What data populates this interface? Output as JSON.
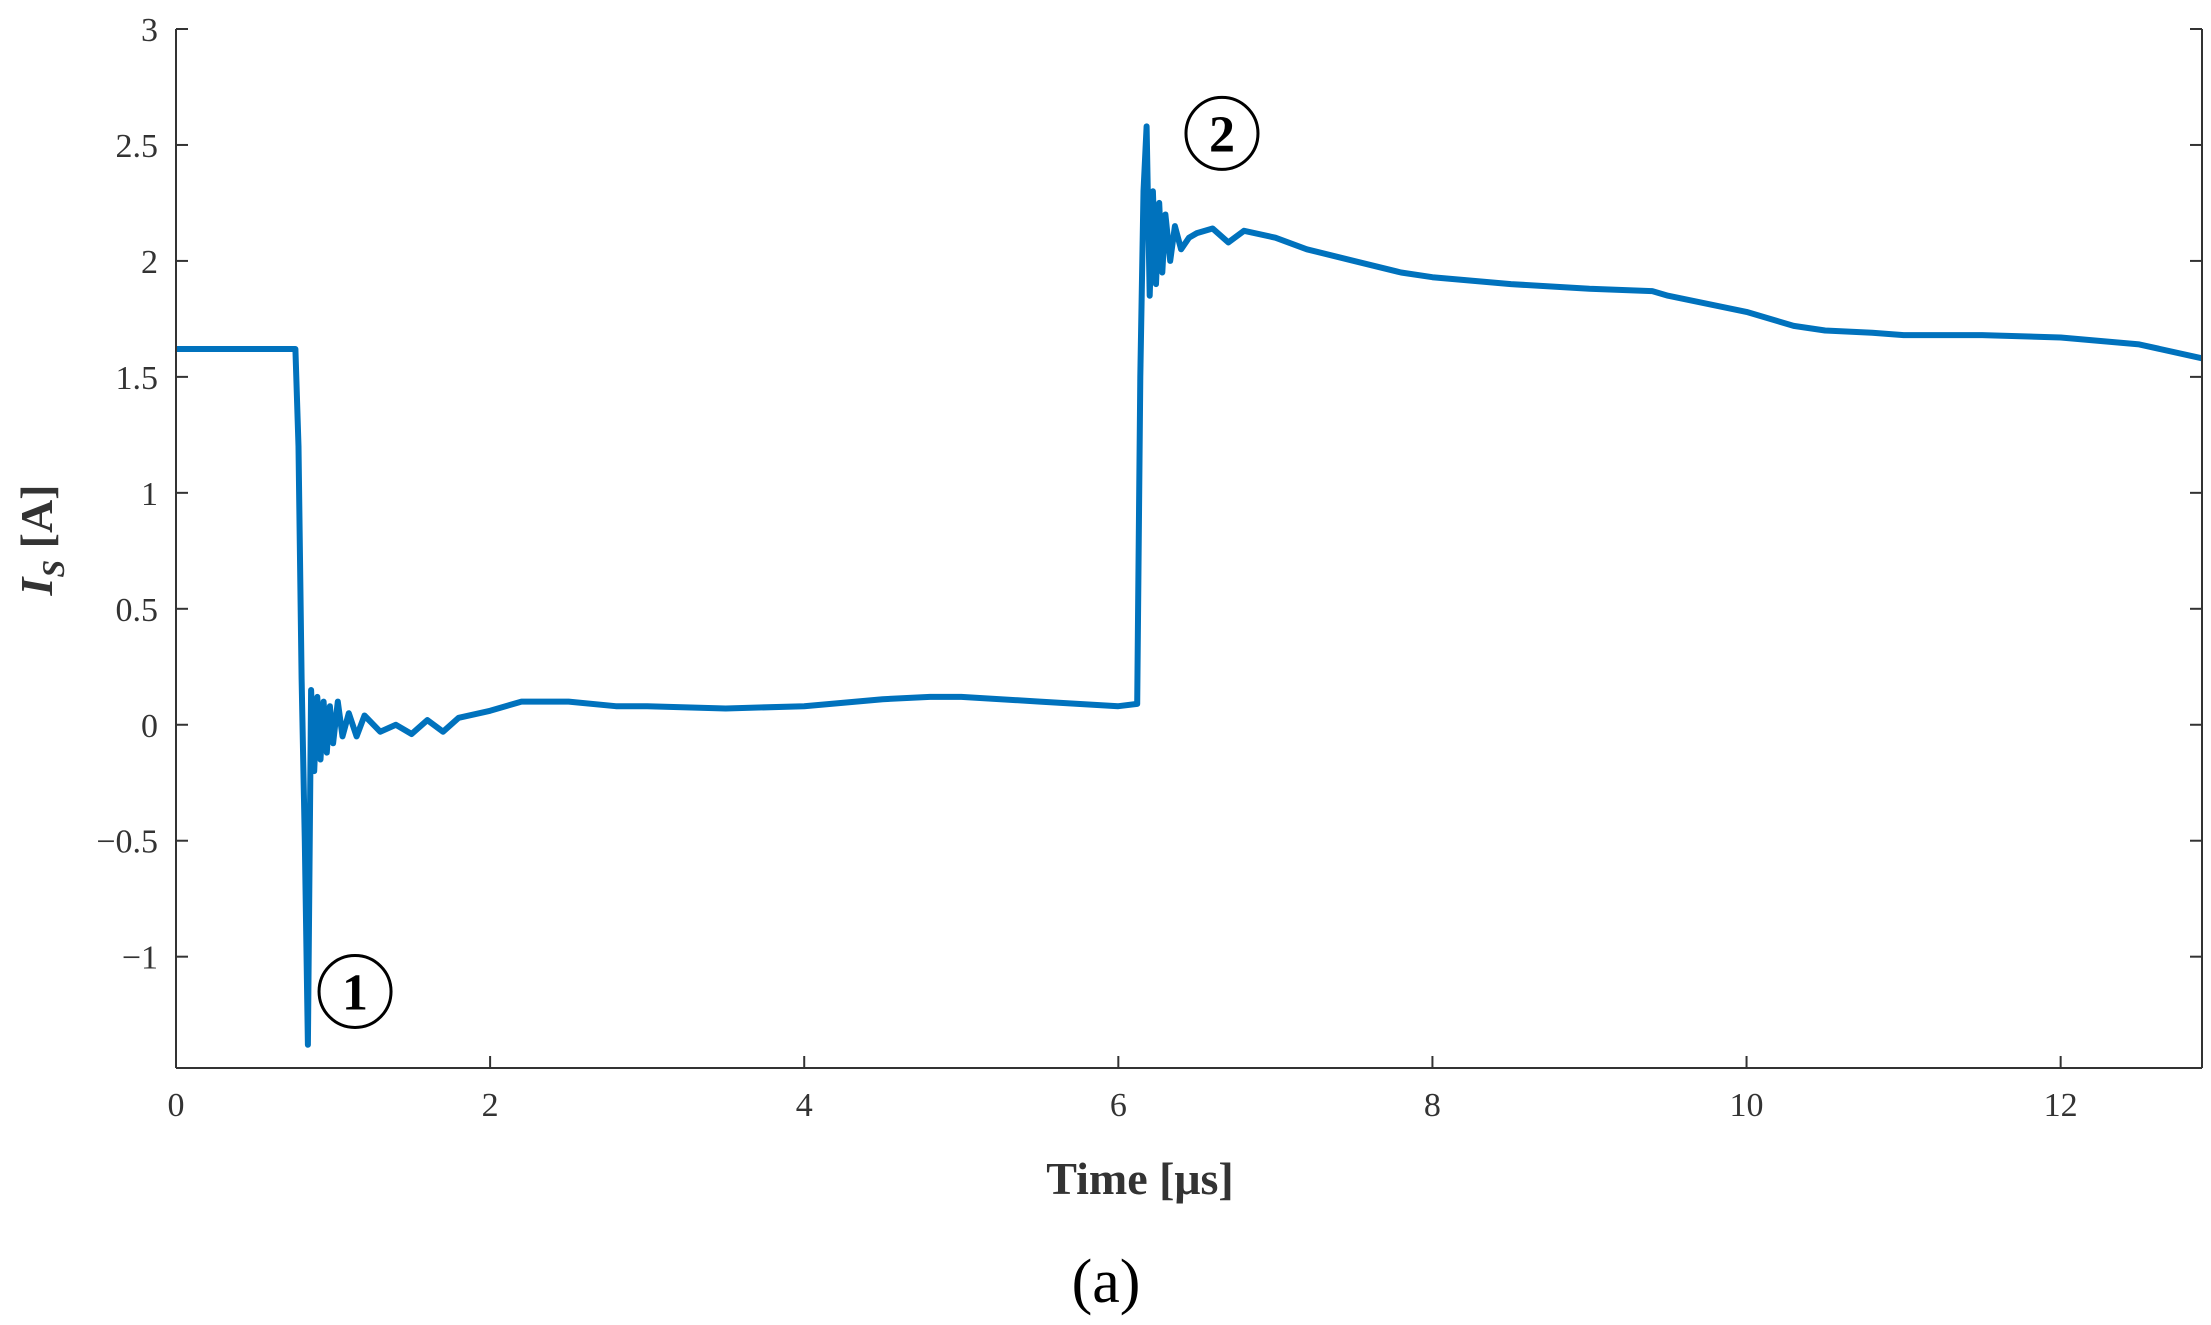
{
  "chart_data": {
    "type": "line",
    "xlabel": "Time [μs]",
    "ylabel": "I_S [A]",
    "ylabel_main": "I",
    "ylabel_sub": "S",
    "ylabel_unit": " [A]",
    "panel_label": "(a)",
    "xlim": [
      0,
      12.9
    ],
    "ylim": [
      -1.48,
      3
    ],
    "xticks": [
      0,
      2,
      4,
      6,
      8,
      10,
      12
    ],
    "yticks": [
      -1,
      -0.5,
      0,
      0.5,
      1,
      1.5,
      2,
      2.5,
      3
    ],
    "xtick_labels": [
      "0",
      "2",
      "4",
      "6",
      "8",
      "10",
      "12"
    ],
    "ytick_labels": [
      "−1",
      "−0.5",
      "0",
      "0.5",
      "1",
      "1.5",
      "2",
      "2.5",
      "3"
    ],
    "grid": false,
    "line_color": "#0072BD",
    "series": [
      {
        "x": [
          0,
          0.2,
          0.4,
          0.6,
          0.74,
          0.76,
          0.78,
          0.8,
          0.82,
          0.84,
          0.86,
          0.88,
          0.9,
          0.92,
          0.94,
          0.96,
          0.98,
          1.0,
          1.03,
          1.06,
          1.1,
          1.15,
          1.2,
          1.3,
          1.4,
          1.5,
          1.6,
          1.7,
          1.8,
          2.0,
          2.2,
          2.5,
          2.8,
          3.0,
          3.5,
          4.0,
          4.5,
          4.8,
          5.0,
          5.5,
          6.0,
          6.12,
          6.14,
          6.16,
          6.18,
          6.2,
          6.22,
          6.24,
          6.26,
          6.28,
          6.3,
          6.33,
          6.36,
          6.4,
          6.45,
          6.5,
          6.6,
          6.7,
          6.8,
          7.0,
          7.2,
          7.5,
          7.8,
          8.0,
          8.5,
          9.0,
          9.4,
          9.5,
          10.0,
          10.3,
          10.5,
          10.8,
          11.0,
          11.5,
          12.0,
          12.5,
          12.9
        ],
        "y": [
          1.62,
          1.62,
          1.62,
          1.62,
          1.62,
          1.62,
          1.2,
          0.2,
          -0.5,
          -1.38,
          0.15,
          -0.2,
          0.12,
          -0.15,
          0.1,
          -0.12,
          0.08,
          -0.08,
          0.1,
          -0.05,
          0.05,
          -0.05,
          0.04,
          -0.03,
          0.0,
          -0.04,
          0.02,
          -0.03,
          0.03,
          0.06,
          0.1,
          0.1,
          0.08,
          0.08,
          0.07,
          0.08,
          0.11,
          0.12,
          0.12,
          0.1,
          0.08,
          0.09,
          1.5,
          2.3,
          2.58,
          1.85,
          2.3,
          1.9,
          2.25,
          1.95,
          2.2,
          2.0,
          2.15,
          2.05,
          2.1,
          2.12,
          2.14,
          2.08,
          2.13,
          2.1,
          2.05,
          2.0,
          1.95,
          1.93,
          1.9,
          1.88,
          1.87,
          1.85,
          1.78,
          1.72,
          1.7,
          1.69,
          1.68,
          1.68,
          1.67,
          1.64,
          1.58
        ]
      }
    ],
    "annotations": [
      {
        "text": "1",
        "x": 1.14,
        "y": -1.15
      },
      {
        "text": "2",
        "x": 6.66,
        "y": 2.55
      }
    ]
  }
}
